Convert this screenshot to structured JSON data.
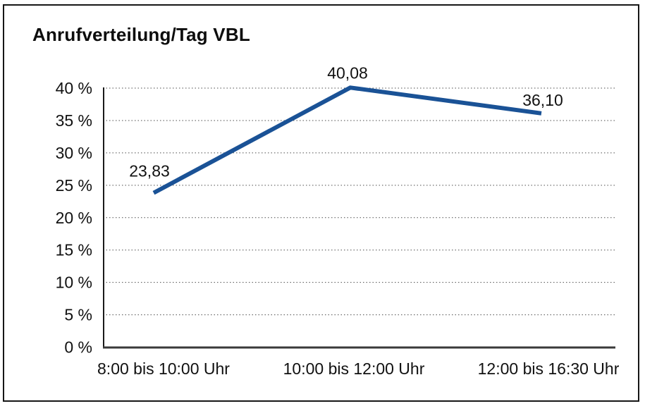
{
  "chart_data": {
    "type": "line",
    "title": "Anrufverteilung/Tag VBL",
    "categories": [
      "8:00 bis 10:00 Uhr",
      "10:00 bis 12:00 Uhr",
      "12:00 bis 16:30 Uhr"
    ],
    "values": [
      23.83,
      40.08,
      36.1
    ],
    "value_labels": [
      "23,83",
      "40,08",
      "36,10"
    ],
    "xlabel": "",
    "ylabel": "",
    "ylim": [
      0,
      40
    ],
    "ytick_step": 5,
    "ytick_labels": [
      "0 %",
      "5 %",
      "10 %",
      "15 %",
      "20 %",
      "25 %",
      "30 %",
      "35 %",
      "40 %"
    ],
    "grid": "horizontal-dotted",
    "legend": "none",
    "series_name": "Anrufverteilung"
  },
  "colors": {
    "line": "#1a5296",
    "grid": "#4d4d4d",
    "y_axis": "#1a1a1a",
    "x_axis": "#3a3a3a",
    "text": "#111111",
    "frame": "#161616",
    "background": "#ffffff"
  }
}
